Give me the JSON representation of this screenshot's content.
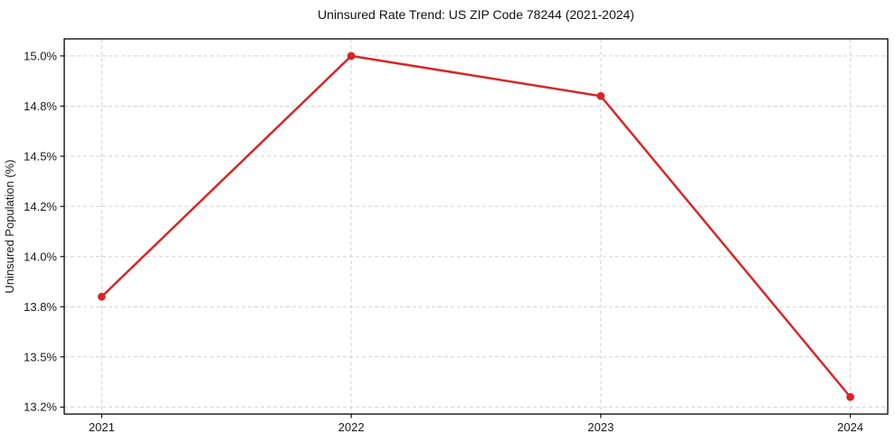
{
  "chart_data": {
    "type": "line",
    "title": "Uninsured Rate Trend: US ZIP Code 78244 (2021-2024)",
    "xlabel": "",
    "ylabel": "Uninsured Population (%)",
    "x": [
      2021,
      2022,
      2023,
      2024
    ],
    "x_tick_labels": [
      "2021",
      "2022",
      "2023",
      "2024"
    ],
    "series": [
      {
        "name": "Uninsured Population (%)",
        "color": "#d62728",
        "values": [
          13.8,
          15.0,
          14.8,
          13.3
        ]
      }
    ],
    "y_ticks": [
      {
        "value": 13.25,
        "label": "13.2%"
      },
      {
        "value": 13.5,
        "label": "13.5%"
      },
      {
        "value": 13.75,
        "label": "13.8%"
      },
      {
        "value": 14.0,
        "label": "14.0%"
      },
      {
        "value": 14.25,
        "label": "14.2%"
      },
      {
        "value": 14.5,
        "label": "14.5%"
      },
      {
        "value": 14.75,
        "label": "14.8%"
      },
      {
        "value": 15.0,
        "label": "15.0%"
      }
    ],
    "xlim": [
      2020.85,
      2024.15
    ],
    "ylim": [
      13.215,
      15.085
    ],
    "grid": true,
    "grid_style": "dashed",
    "legend": "none",
    "marker": "circle",
    "marker_radius": 4.4
  }
}
